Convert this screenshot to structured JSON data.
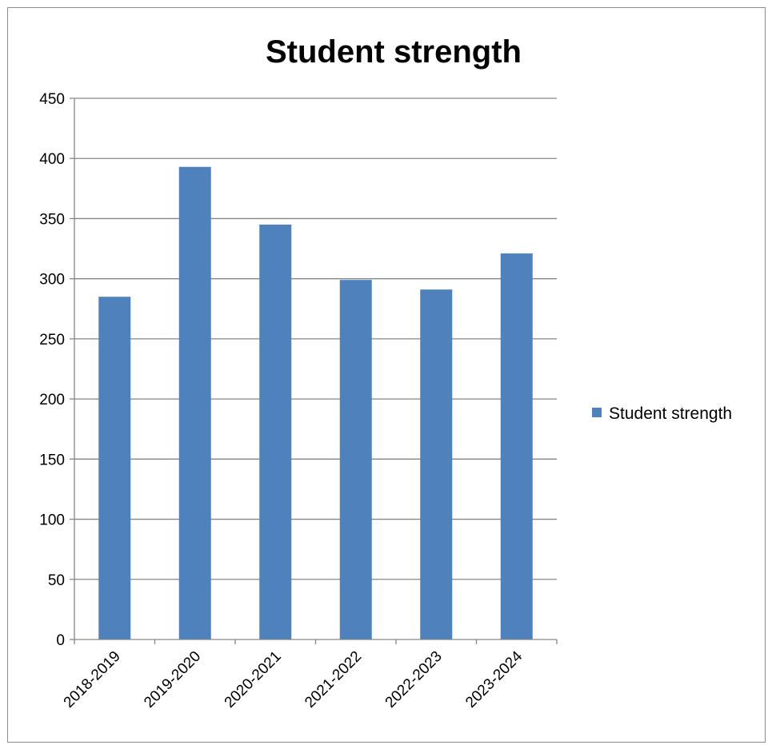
{
  "chart_data": {
    "type": "bar",
    "title": "Student strength",
    "categories": [
      "2018-2019",
      "2019-2020",
      "2020-2021",
      "2021-2022",
      "2022-2023",
      "2023-2024"
    ],
    "series": [
      {
        "name": "Student strength",
        "values": [
          285,
          393,
          345,
          299,
          291,
          321
        ]
      }
    ],
    "xlabel": "",
    "ylabel": "",
    "ylim": [
      0,
      450
    ],
    "y_ticks": [
      0,
      50,
      100,
      150,
      200,
      250,
      300,
      350,
      400,
      450
    ],
    "grid": true,
    "legend_position": "right",
    "colors": {
      "bar": "#4f81bd",
      "grid": "#868686",
      "axis": "#868686"
    }
  }
}
